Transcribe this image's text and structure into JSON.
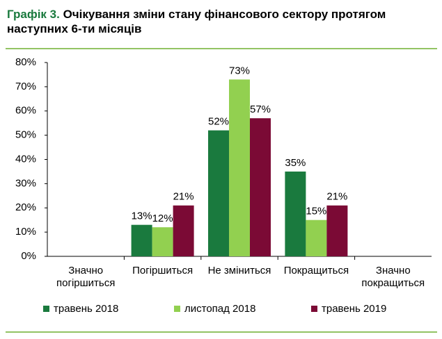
{
  "chart_data": {
    "type": "bar",
    "title_label": "Графік 3.",
    "title": "Очікування зміни стану фінансового сектору протягом наступних 6-ти місяців",
    "categories": [
      "Значно погіршиться",
      "Погіршиться",
      "Не зміниться",
      "Покращиться",
      "Значно покращиться"
    ],
    "series": [
      {
        "name": "травень 2018",
        "color": "#1a7a3e",
        "values": [
          null,
          13,
          52,
          35,
          null
        ],
        "value_labels": [
          null,
          "13%",
          "52%",
          "35%",
          null
        ]
      },
      {
        "name": "листопад 2018",
        "color": "#92d050",
        "values": [
          null,
          12,
          73,
          15,
          null
        ],
        "value_labels": [
          null,
          "12%",
          "73%",
          "15%",
          null
        ]
      },
      {
        "name": "травень 2019",
        "color": "#7b0a35",
        "values": [
          null,
          21,
          57,
          21,
          null
        ],
        "value_labels": [
          null,
          "21%",
          "57%",
          "21%",
          null
        ]
      }
    ],
    "ylim": [
      0,
      80
    ],
    "yticks": [
      {
        "value": 0,
        "label": "0%"
      },
      {
        "value": 10,
        "label": "10%"
      },
      {
        "value": 20,
        "label": "20%"
      },
      {
        "value": 30,
        "label": "30%"
      },
      {
        "value": 40,
        "label": "40%"
      },
      {
        "value": 50,
        "label": "50%"
      },
      {
        "value": 60,
        "label": "60%"
      },
      {
        "value": 70,
        "label": "70%"
      },
      {
        "value": 80,
        "label": "80%"
      }
    ],
    "legend": "bottom"
  }
}
